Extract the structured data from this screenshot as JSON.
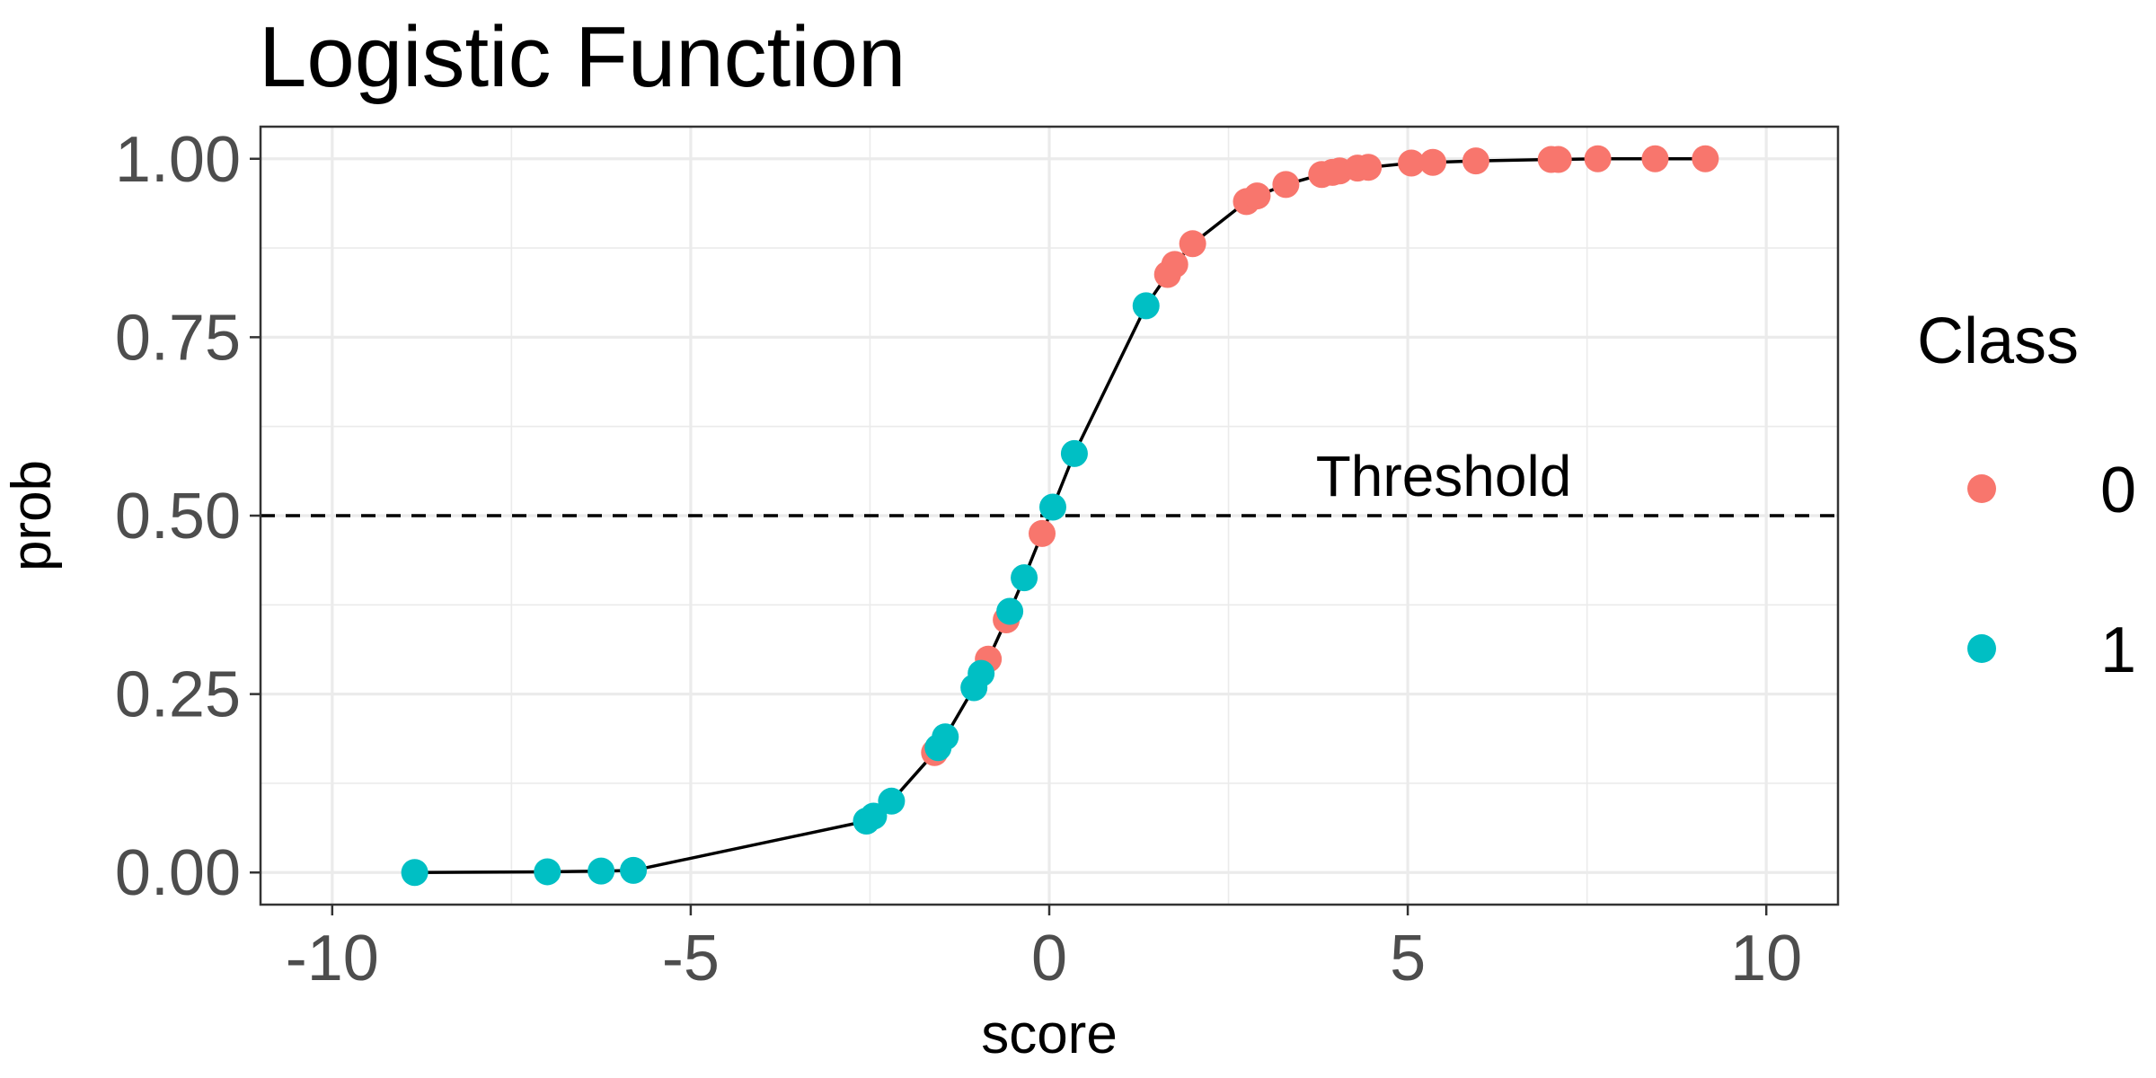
{
  "chart_data": {
    "type": "scatter",
    "title": "Logistic Function",
    "xlabel": "score",
    "ylabel": "prob",
    "xlim": [
      -11,
      11
    ],
    "ylim": [
      -0.045,
      1.045
    ],
    "x_ticks": [
      -10,
      -5,
      0,
      5,
      10
    ],
    "x_tick_labels": [
      "-10",
      "-5",
      "0",
      "5",
      "10"
    ],
    "y_ticks": [
      0,
      0.25,
      0.5,
      0.75,
      1
    ],
    "y_tick_labels": [
      "0.00",
      "0.25",
      "0.50",
      "0.75",
      "1.00"
    ],
    "grid": true,
    "legend_placement": "right",
    "legend": {
      "title": "Class",
      "entries": [
        {
          "label": "0",
          "color": "#F8766D"
        },
        {
          "label": "1",
          "color": "#00BFC4"
        }
      ]
    },
    "threshold": {
      "y": 0.5,
      "label": "Threshold",
      "label_x": 5.5
    },
    "series": [
      {
        "class": "0",
        "color": "#F8766D",
        "x": [
          -1.6,
          -0.85,
          -0.6,
          -0.1,
          1.65,
          1.75,
          2.0,
          2.75,
          2.9,
          3.3,
          3.8,
          3.95,
          4.05,
          4.3,
          4.45,
          5.05,
          5.35,
          5.95,
          7.0,
          7.1,
          7.65,
          8.45,
          9.15
        ],
        "y": [
          0.168,
          0.299,
          0.354,
          0.475,
          0.838,
          0.852,
          0.881,
          0.94,
          0.948,
          0.964,
          0.978,
          0.981,
          0.983,
          0.987,
          0.988,
          0.994,
          0.995,
          0.997,
          0.999,
          0.999,
          1.0,
          1.0,
          1.0
        ]
      },
      {
        "class": "1",
        "color": "#00BFC4",
        "x": [
          -8.85,
          -7.0,
          -6.25,
          -5.8,
          -2.55,
          -2.45,
          -2.2,
          -1.55,
          -1.45,
          -1.05,
          -0.95,
          -0.55,
          -0.35,
          0.05,
          0.35,
          1.35
        ],
        "y": [
          0.0,
          0.001,
          0.002,
          0.003,
          0.072,
          0.079,
          0.1,
          0.175,
          0.19,
          0.259,
          0.279,
          0.366,
          0.413,
          0.512,
          0.587,
          0.794
        ]
      }
    ]
  }
}
